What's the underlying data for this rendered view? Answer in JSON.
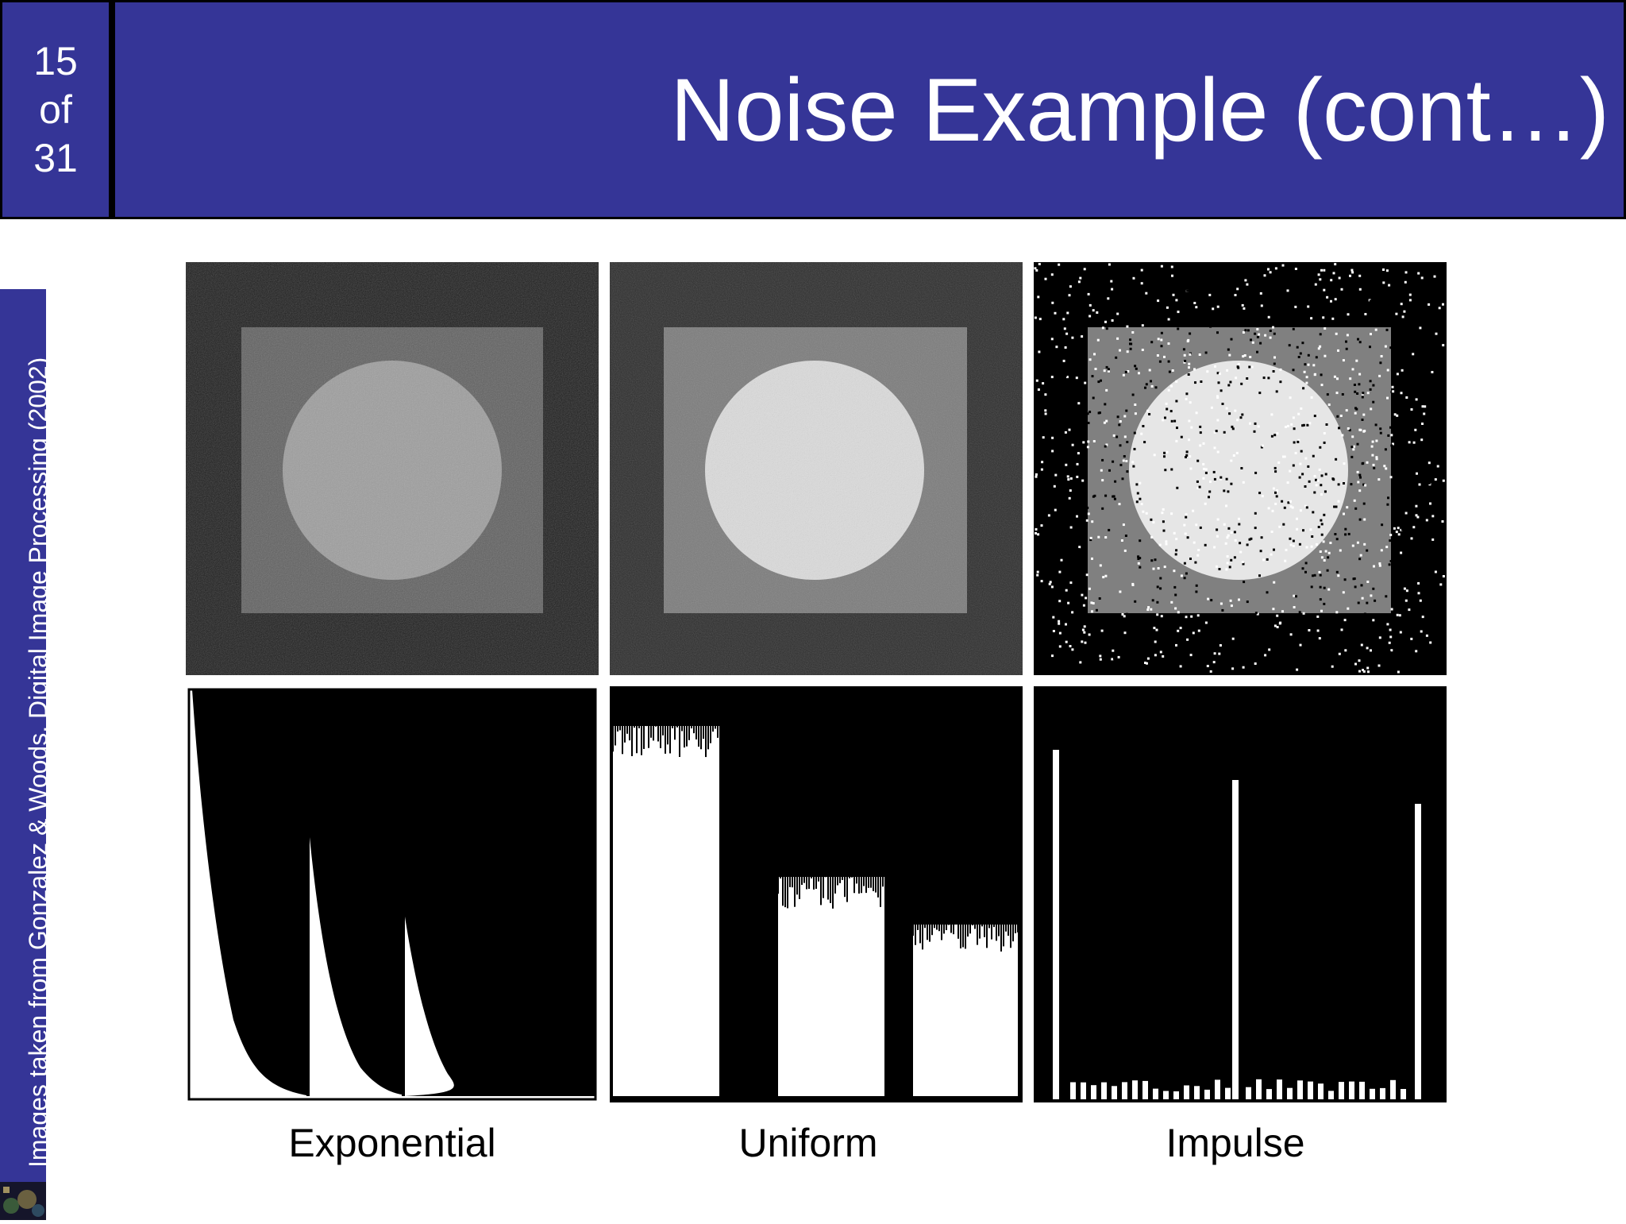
{
  "slide": {
    "page_current": "15",
    "page_of": "of",
    "page_total": "31",
    "title": "Noise Example (cont…)",
    "sidebar_credit": "Images taken from Gonzalez & Woods, Digital Image Processing (2002)"
  },
  "figures": {
    "captions": [
      "Exponential",
      "Uniform",
      "Impulse"
    ]
  },
  "colors": {
    "header_bg": "#353597",
    "header_text": "#ffffff"
  }
}
